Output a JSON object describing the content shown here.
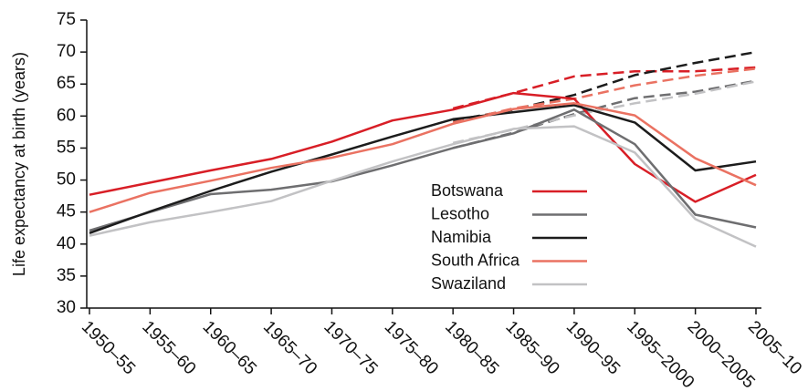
{
  "chart_data": {
    "type": "line",
    "y_label": "Life expectancy at birth (years)",
    "categories": [
      "1950–55",
      "1955–60",
      "1960–65",
      "1965–70",
      "1970–75",
      "1975–80",
      "1980–85",
      "1985–90",
      "1990–95",
      "1995–2000",
      "2000–2005",
      "2005–10"
    ],
    "series": [
      {
        "name": "Botswana",
        "color": "#d81e26",
        "values": [
          47.7,
          49.6,
          51.5,
          53.3,
          56.0,
          59.3,
          61.0,
          63.6,
          62.7,
          52.5,
          46.6,
          50.8
        ],
        "projection_values": [
          null,
          null,
          null,
          null,
          null,
          null,
          61.2,
          63.6,
          66.2,
          67.0,
          67.0,
          67.6
        ]
      },
      {
        "name": "Lesotho",
        "color": "#6e6e70",
        "values": [
          42.1,
          45.0,
          47.8,
          48.5,
          49.8,
          52.3,
          55.0,
          57.3,
          61.0,
          55.6,
          44.6,
          42.6
        ],
        "projection_values": [
          null,
          null,
          null,
          null,
          null,
          null,
          55.0,
          57.4,
          60.3,
          62.8,
          63.8,
          65.5
        ]
      },
      {
        "name": "Namibia",
        "color": "#1c1c1c",
        "values": [
          41.7,
          45.1,
          48.3,
          51.3,
          54.0,
          56.8,
          59.5,
          60.6,
          61.7,
          59.0,
          51.5,
          52.9
        ],
        "projection_values": [
          null,
          null,
          null,
          null,
          null,
          null,
          59.3,
          61.0,
          63.3,
          66.4,
          68.3,
          70.0
        ]
      },
      {
        "name": "South Africa",
        "color": "#ea7262",
        "values": [
          45.0,
          48.0,
          49.9,
          51.9,
          53.5,
          55.6,
          58.8,
          61.1,
          62.0,
          60.1,
          53.4,
          49.2
        ],
        "projection_values": [
          null,
          null,
          null,
          null,
          null,
          null,
          59.0,
          61.2,
          62.7,
          64.8,
          66.3,
          67.4
        ]
      },
      {
        "name": "Swaziland",
        "color": "#c2c2c4",
        "values": [
          41.3,
          43.4,
          45.0,
          46.7,
          49.9,
          52.9,
          55.6,
          58.0,
          58.4,
          54.3,
          43.9,
          39.6
        ],
        "projection_values": [
          null,
          null,
          null,
          null,
          null,
          null,
          55.8,
          57.9,
          60.1,
          62.0,
          63.5,
          65.4
        ]
      }
    ],
    "ylim": [
      30,
      75
    ],
    "yticks": [
      30,
      35,
      40,
      45,
      50,
      55,
      60,
      65,
      70,
      75
    ],
    "grid": false
  }
}
